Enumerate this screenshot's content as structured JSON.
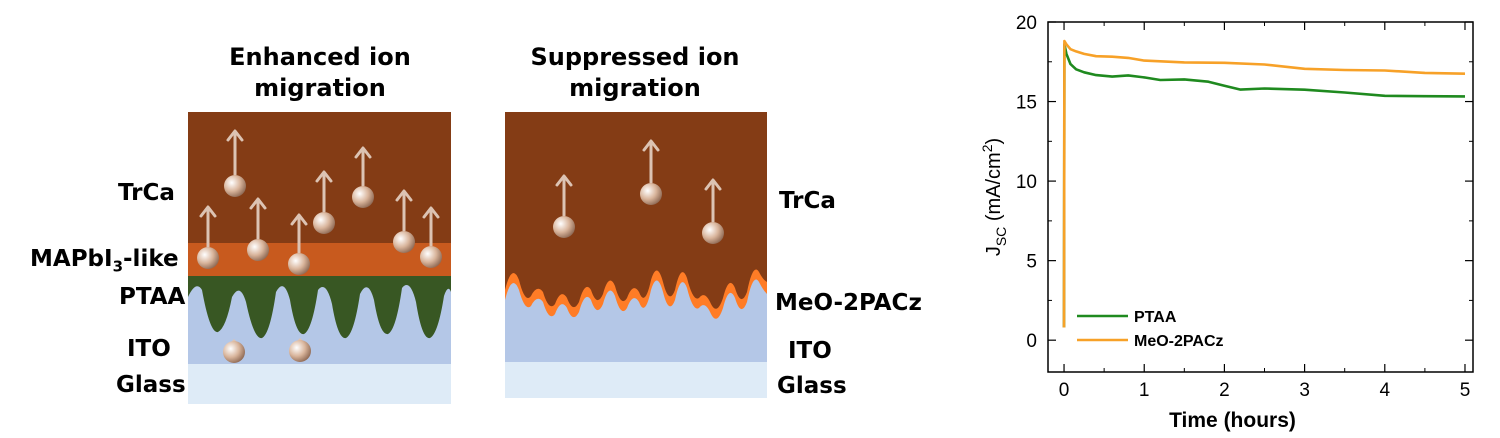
{
  "left_panel": {
    "heading_line1": "Enhanced ion",
    "heading_line2": "migration",
    "label_trca": "TrCa",
    "label_mapbi_pre": "MAPbI",
    "label_mapbi_sub": "3",
    "label_mapbi_post": "-like",
    "label_ptaa": "PTAA",
    "label_ito": "ITO",
    "label_glass": "Glass"
  },
  "middle_panel": {
    "heading_line1": "Suppressed ion",
    "heading_line2": "migration",
    "label_trca": "TrCa",
    "label_meo": "MeO-2PACz",
    "label_ito": "ITO",
    "label_glass": "Glass"
  },
  "colors": {
    "trca": "#843c15",
    "mapbi": "#c85a1e",
    "ptaa": "#385723",
    "ito": "#b4c7e7",
    "glass": "#deebf7",
    "meo_line": "#ff7c26",
    "ptaa_series": "#1f8a1f",
    "meo_series": "#f7a128",
    "arrow": "#dcc3b3",
    "ion": "#d9b59c"
  },
  "chart_data": {
    "type": "line",
    "xlabel": "Time (hours)",
    "ylabel_main": "J",
    "ylabel_sub": "SC",
    "ylabel_rest": " (mA/cm",
    "ylabel_sup": "2",
    "ylabel_end": ")",
    "xlim": [
      -0.2,
      5.1
    ],
    "ylim": [
      -2,
      20
    ],
    "xticks": [
      "0",
      "1",
      "2",
      "3",
      "4",
      "5"
    ],
    "yticks": [
      "0",
      "5",
      "10",
      "15",
      "20"
    ],
    "legend_position": "bottom-left",
    "series": [
      {
        "name": "PTAA",
        "color": "#1f8a1f",
        "x": [
          0,
          0.005,
          0.03,
          0.08,
          0.15,
          0.25,
          0.4,
          0.6,
          0.8,
          1.0,
          1.2,
          1.5,
          1.8,
          2.0,
          2.2,
          2.5,
          3.0,
          3.5,
          4.0,
          4.5,
          5.0
        ],
        "y": [
          0.8,
          18.6,
          18.0,
          17.4,
          17.0,
          16.8,
          16.7,
          16.6,
          16.6,
          16.5,
          16.4,
          16.4,
          16.2,
          16.0,
          15.8,
          15.8,
          15.7,
          15.6,
          15.4,
          15.3,
          15.3
        ]
      },
      {
        "name": "MeO-2PACz",
        "color": "#f7a128",
        "x": [
          0,
          0.005,
          0.03,
          0.08,
          0.15,
          0.25,
          0.4,
          0.6,
          0.8,
          1.0,
          1.5,
          2.0,
          2.5,
          3.0,
          3.5,
          4.0,
          4.5,
          5.0
        ],
        "y": [
          0.8,
          18.8,
          18.6,
          18.3,
          18.1,
          18.0,
          17.9,
          17.8,
          17.7,
          17.6,
          17.5,
          17.4,
          17.3,
          17.1,
          17.0,
          16.9,
          16.8,
          16.8
        ]
      }
    ]
  }
}
